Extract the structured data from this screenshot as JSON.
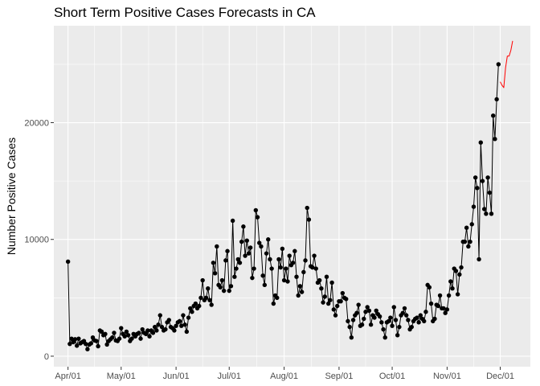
{
  "chart_data": {
    "type": "line",
    "title": "Short Term Positive Cases Forecasts in CA",
    "xlabel": "",
    "ylabel": "Number Positive Cases",
    "x_ticks": [
      "Apr/01",
      "May/01",
      "Jun/01",
      "Jul/01",
      "Aug/01",
      "Sep/01",
      "Oct/01",
      "Nov/01",
      "Dec/01"
    ],
    "x_tick_dates": [
      "2020-04-01",
      "2020-05-01",
      "2020-06-01",
      "2020-07-01",
      "2020-08-01",
      "2020-09-01",
      "2020-10-01",
      "2020-11-01",
      "2020-12-01"
    ],
    "y_ticks": [
      0,
      10000,
      20000
    ],
    "y_tick_labels": [
      "0",
      "10000",
      "20000"
    ],
    "xlim": [
      "2020-03-24",
      "2020-12-18"
    ],
    "ylim": [
      -900,
      28300
    ],
    "grid": true,
    "series": [
      {
        "color": "#000000",
        "style": "line+points",
        "points": [
          [
            "2020-04-01",
            8100
          ],
          [
            "2020-04-02",
            1050
          ],
          [
            "2020-04-03",
            1500
          ],
          [
            "2020-04-04",
            1200
          ],
          [
            "2020-04-05",
            1450
          ],
          [
            "2020-04-06",
            900
          ],
          [
            "2020-04-07",
            1500
          ],
          [
            "2020-04-08",
            1100
          ],
          [
            "2020-04-09",
            1200
          ],
          [
            "2020-04-10",
            1300
          ],
          [
            "2020-04-11",
            1050
          ],
          [
            "2020-04-12",
            600
          ],
          [
            "2020-04-13",
            1000
          ],
          [
            "2020-04-14",
            1100
          ],
          [
            "2020-04-15",
            1600
          ],
          [
            "2020-04-16",
            1350
          ],
          [
            "2020-04-17",
            1300
          ],
          [
            "2020-04-18",
            850
          ],
          [
            "2020-04-19",
            2200
          ],
          [
            "2020-04-20",
            2100
          ],
          [
            "2020-04-21",
            1800
          ],
          [
            "2020-04-22",
            1900
          ],
          [
            "2020-04-23",
            1000
          ],
          [
            "2020-04-24",
            1300
          ],
          [
            "2020-04-25",
            1450
          ],
          [
            "2020-04-26",
            1600
          ],
          [
            "2020-04-27",
            2000
          ],
          [
            "2020-04-28",
            1350
          ],
          [
            "2020-04-29",
            1300
          ],
          [
            "2020-04-30",
            1500
          ],
          [
            "2020-05-01",
            2400
          ],
          [
            "2020-05-02",
            1900
          ],
          [
            "2020-05-03",
            1700
          ],
          [
            "2020-05-04",
            2100
          ],
          [
            "2020-05-05",
            1800
          ],
          [
            "2020-05-06",
            1300
          ],
          [
            "2020-05-07",
            1500
          ],
          [
            "2020-05-08",
            1900
          ],
          [
            "2020-05-09",
            1700
          ],
          [
            "2020-05-10",
            1900
          ],
          [
            "2020-05-11",
            2000
          ],
          [
            "2020-05-12",
            1500
          ],
          [
            "2020-05-13",
            2300
          ],
          [
            "2020-05-14",
            2000
          ],
          [
            "2020-05-15",
            1900
          ],
          [
            "2020-05-16",
            2200
          ],
          [
            "2020-05-17",
            1700
          ],
          [
            "2020-05-18",
            2200
          ],
          [
            "2020-05-19",
            2000
          ],
          [
            "2020-05-20",
            2500
          ],
          [
            "2020-05-21",
            2200
          ],
          [
            "2020-05-22",
            2700
          ],
          [
            "2020-05-23",
            3500
          ],
          [
            "2020-05-24",
            2500
          ],
          [
            "2020-05-25",
            2200
          ],
          [
            "2020-05-26",
            2300
          ],
          [
            "2020-05-27",
            2900
          ],
          [
            "2020-05-28",
            3100
          ],
          [
            "2020-05-29",
            2500
          ],
          [
            "2020-05-30",
            2400
          ],
          [
            "2020-05-31",
            2200
          ],
          [
            "2020-06-01",
            2600
          ],
          [
            "2020-06-02",
            2900
          ],
          [
            "2020-06-03",
            3000
          ],
          [
            "2020-06-04",
            2600
          ],
          [
            "2020-06-05",
            3500
          ],
          [
            "2020-06-06",
            2700
          ],
          [
            "2020-06-07",
            2100
          ],
          [
            "2020-06-08",
            3300
          ],
          [
            "2020-06-09",
            4100
          ],
          [
            "2020-06-10",
            3800
          ],
          [
            "2020-06-11",
            4300
          ],
          [
            "2020-06-12",
            4500
          ],
          [
            "2020-06-13",
            4100
          ],
          [
            "2020-06-14",
            4300
          ],
          [
            "2020-06-15",
            5000
          ],
          [
            "2020-06-16",
            6500
          ],
          [
            "2020-06-17",
            4800
          ],
          [
            "2020-06-18",
            5000
          ],
          [
            "2020-06-19",
            5800
          ],
          [
            "2020-06-20",
            4800
          ],
          [
            "2020-06-21",
            4400
          ],
          [
            "2020-06-22",
            8000
          ],
          [
            "2020-06-23",
            7100
          ],
          [
            "2020-06-24",
            9400
          ],
          [
            "2020-06-25",
            6100
          ],
          [
            "2020-06-26",
            5900
          ],
          [
            "2020-06-27",
            6500
          ],
          [
            "2020-06-28",
            5600
          ],
          [
            "2020-06-29",
            8200
          ],
          [
            "2020-06-30",
            9000
          ],
          [
            "2020-07-01",
            5600
          ],
          [
            "2020-07-02",
            6000
          ],
          [
            "2020-07-03",
            11600
          ],
          [
            "2020-07-04",
            6800
          ],
          [
            "2020-07-05",
            7500
          ],
          [
            "2020-07-06",
            8300
          ],
          [
            "2020-07-07",
            8000
          ],
          [
            "2020-07-08",
            9800
          ],
          [
            "2020-07-09",
            11100
          ],
          [
            "2020-07-10",
            8600
          ],
          [
            "2020-07-11",
            9900
          ],
          [
            "2020-07-12",
            8800
          ],
          [
            "2020-07-13",
            9300
          ],
          [
            "2020-07-14",
            6700
          ],
          [
            "2020-07-15",
            7500
          ],
          [
            "2020-07-16",
            12500
          ],
          [
            "2020-07-17",
            11900
          ],
          [
            "2020-07-18",
            9700
          ],
          [
            "2020-07-19",
            9400
          ],
          [
            "2020-07-20",
            6900
          ],
          [
            "2020-07-21",
            6100
          ],
          [
            "2020-07-22",
            8800
          ],
          [
            "2020-07-23",
            10000
          ],
          [
            "2020-07-24",
            8300
          ],
          [
            "2020-07-25",
            7500
          ],
          [
            "2020-07-26",
            4500
          ],
          [
            "2020-07-27",
            5200
          ],
          [
            "2020-07-28",
            5000
          ],
          [
            "2020-07-29",
            8300
          ],
          [
            "2020-07-30",
            7600
          ],
          [
            "2020-07-31",
            9200
          ],
          [
            "2020-08-01",
            6500
          ],
          [
            "2020-08-02",
            7500
          ],
          [
            "2020-08-03",
            6400
          ],
          [
            "2020-08-04",
            8600
          ],
          [
            "2020-08-05",
            7800
          ],
          [
            "2020-08-06",
            8000
          ],
          [
            "2020-08-07",
            9000
          ],
          [
            "2020-08-08",
            6800
          ],
          [
            "2020-08-09",
            5200
          ],
          [
            "2020-08-10",
            6000
          ],
          [
            "2020-08-11",
            5500
          ],
          [
            "2020-08-12",
            7200
          ],
          [
            "2020-08-13",
            8200
          ],
          [
            "2020-08-14",
            12700
          ],
          [
            "2020-08-15",
            11700
          ],
          [
            "2020-08-16",
            7700
          ],
          [
            "2020-08-17",
            7600
          ],
          [
            "2020-08-18",
            8600
          ],
          [
            "2020-08-19",
            7500
          ],
          [
            "2020-08-20",
            6300
          ],
          [
            "2020-08-21",
            6500
          ],
          [
            "2020-08-22",
            5800
          ],
          [
            "2020-08-23",
            4600
          ],
          [
            "2020-08-24",
            5100
          ],
          [
            "2020-08-25",
            6800
          ],
          [
            "2020-08-26",
            4500
          ],
          [
            "2020-08-27",
            4800
          ],
          [
            "2020-08-28",
            6300
          ],
          [
            "2020-08-29",
            4000
          ],
          [
            "2020-08-30",
            3500
          ],
          [
            "2020-08-31",
            4300
          ],
          [
            "2020-09-01",
            4700
          ],
          [
            "2020-09-02",
            4700
          ],
          [
            "2020-09-03",
            5400
          ],
          [
            "2020-09-04",
            5000
          ],
          [
            "2020-09-05",
            4900
          ],
          [
            "2020-09-06",
            3000
          ],
          [
            "2020-09-07",
            2500
          ],
          [
            "2020-09-08",
            1600
          ],
          [
            "2020-09-09",
            3100
          ],
          [
            "2020-09-10",
            3500
          ],
          [
            "2020-09-11",
            3700
          ],
          [
            "2020-09-12",
            4400
          ],
          [
            "2020-09-13",
            2600
          ],
          [
            "2020-09-14",
            2700
          ],
          [
            "2020-09-15",
            3200
          ],
          [
            "2020-09-16",
            3800
          ],
          [
            "2020-09-17",
            4200
          ],
          [
            "2020-09-18",
            3900
          ],
          [
            "2020-09-19",
            2700
          ],
          [
            "2020-09-20",
            3500
          ],
          [
            "2020-09-21",
            3300
          ],
          [
            "2020-09-22",
            3900
          ],
          [
            "2020-09-23",
            3600
          ],
          [
            "2020-09-24",
            3400
          ],
          [
            "2020-09-25",
            2900
          ],
          [
            "2020-09-26",
            2300
          ],
          [
            "2020-09-27",
            1600
          ],
          [
            "2020-09-28",
            2900
          ],
          [
            "2020-09-29",
            3000
          ],
          [
            "2020-09-30",
            3300
          ],
          [
            "2020-10-01",
            2600
          ],
          [
            "2020-10-02",
            4200
          ],
          [
            "2020-10-03",
            3100
          ],
          [
            "2020-10-04",
            1800
          ],
          [
            "2020-10-05",
            2500
          ],
          [
            "2020-10-06",
            3500
          ],
          [
            "2020-10-07",
            3700
          ],
          [
            "2020-10-08",
            4100
          ],
          [
            "2020-10-09",
            3500
          ],
          [
            "2020-10-10",
            3100
          ],
          [
            "2020-10-11",
            2300
          ],
          [
            "2020-10-12",
            2500
          ],
          [
            "2020-10-13",
            3000
          ],
          [
            "2020-10-14",
            3200
          ],
          [
            "2020-10-15",
            3300
          ],
          [
            "2020-10-16",
            2900
          ],
          [
            "2020-10-17",
            3500
          ],
          [
            "2020-10-18",
            3200
          ],
          [
            "2020-10-19",
            3000
          ],
          [
            "2020-10-20",
            3800
          ],
          [
            "2020-10-21",
            6100
          ],
          [
            "2020-10-22",
            5900
          ],
          [
            "2020-10-23",
            4500
          ],
          [
            "2020-10-24",
            3000
          ],
          [
            "2020-10-25",
            3200
          ],
          [
            "2020-10-26",
            4400
          ],
          [
            "2020-10-27",
            4300
          ],
          [
            "2020-10-28",
            5200
          ],
          [
            "2020-10-29",
            4100
          ],
          [
            "2020-10-30",
            4100
          ],
          [
            "2020-10-31",
            3700
          ],
          [
            "2020-11-01",
            4000
          ],
          [
            "2020-11-02",
            5200
          ],
          [
            "2020-11-03",
            6400
          ],
          [
            "2020-11-04",
            5800
          ],
          [
            "2020-11-05",
            7500
          ],
          [
            "2020-11-06",
            7300
          ],
          [
            "2020-11-07",
            5300
          ],
          [
            "2020-11-08",
            7000
          ],
          [
            "2020-11-09",
            7600
          ],
          [
            "2020-11-10",
            9800
          ],
          [
            "2020-11-11",
            9800
          ],
          [
            "2020-11-12",
            11000
          ],
          [
            "2020-11-13",
            9400
          ],
          [
            "2020-11-14",
            9800
          ],
          [
            "2020-11-15",
            11300
          ],
          [
            "2020-11-16",
            12800
          ],
          [
            "2020-11-17",
            15300
          ],
          [
            "2020-11-18",
            14400
          ],
          [
            "2020-11-19",
            8300
          ],
          [
            "2020-11-20",
            18300
          ],
          [
            "2020-11-21",
            15000
          ],
          [
            "2020-11-22",
            12600
          ],
          [
            "2020-11-23",
            12200
          ],
          [
            "2020-11-24",
            15300
          ],
          [
            "2020-11-25",
            14000
          ],
          [
            "2020-11-26",
            12200
          ],
          [
            "2020-11-27",
            20600
          ],
          [
            "2020-11-28",
            18600
          ],
          [
            "2020-11-29",
            22000
          ],
          [
            "2020-11-30",
            25000
          ]
        ]
      },
      {
        "color": "#ff0000",
        "style": "line",
        "points": [
          [
            "2020-12-01",
            23500
          ],
          [
            "2020-12-02",
            23200
          ],
          [
            "2020-12-03",
            23000
          ],
          [
            "2020-12-04",
            24700
          ],
          [
            "2020-12-05",
            25700
          ],
          [
            "2020-12-06",
            25700
          ],
          [
            "2020-12-07",
            26200
          ],
          [
            "2020-12-08",
            27000
          ]
        ]
      }
    ]
  }
}
